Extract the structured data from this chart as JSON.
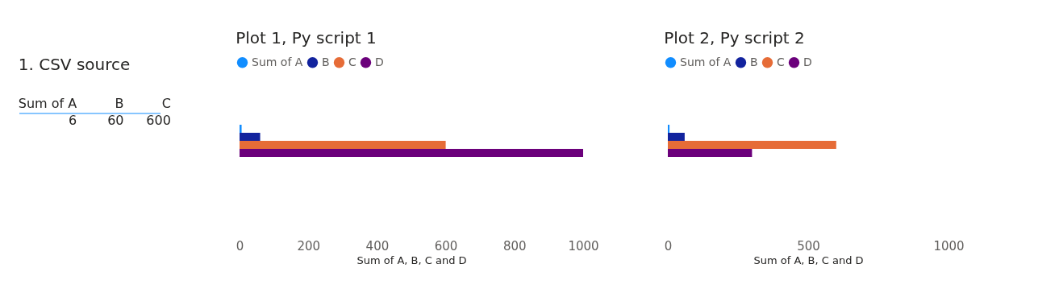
{
  "chart_data": [
    {
      "type": "other",
      "title": "1. CSV source",
      "categories": [
        "Sum of A",
        "B",
        "C"
      ],
      "values": [
        6,
        60,
        600
      ],
      "data_labels": true
    },
    {
      "type": "bar",
      "orientation": "horizontal",
      "title": "Plot 1, Py script 1",
      "xlabel": "Sum of A, B, C and D",
      "categories": [
        null
      ],
      "legend": "top left",
      "grid": false,
      "xlim": [
        0,
        1000
      ],
      "xticks": [
        0,
        200,
        400,
        600,
        800,
        1000
      ],
      "series": [
        {
          "name": "Sum of A",
          "color": "#118dff",
          "values": [
            6
          ]
        },
        {
          "name": "B",
          "color": "#12239e",
          "values": [
            60
          ]
        },
        {
          "name": "C",
          "color": "#e66c37",
          "values": [
            600
          ]
        },
        {
          "name": "D",
          "color": "#6b007b",
          "values": [
            1000
          ]
        }
      ]
    },
    {
      "type": "bar",
      "orientation": "horizontal",
      "title": "Plot 2, Py script 2",
      "xlabel": "Sum of A, B, C and D",
      "categories": [
        null
      ],
      "legend": "top left",
      "grid": false,
      "xlim": [
        0,
        1000
      ],
      "xticks": [
        0,
        500,
        1000
      ],
      "series": [
        {
          "name": "Sum of A",
          "color": "#118dff",
          "values": [
            6
          ]
        },
        {
          "name": "B",
          "color": "#12239e",
          "values": [
            60
          ]
        },
        {
          "name": "C",
          "color": "#e66c37",
          "values": [
            600
          ]
        },
        {
          "name": "D",
          "color": "#6b007b",
          "values": [
            300
          ]
        }
      ]
    }
  ]
}
